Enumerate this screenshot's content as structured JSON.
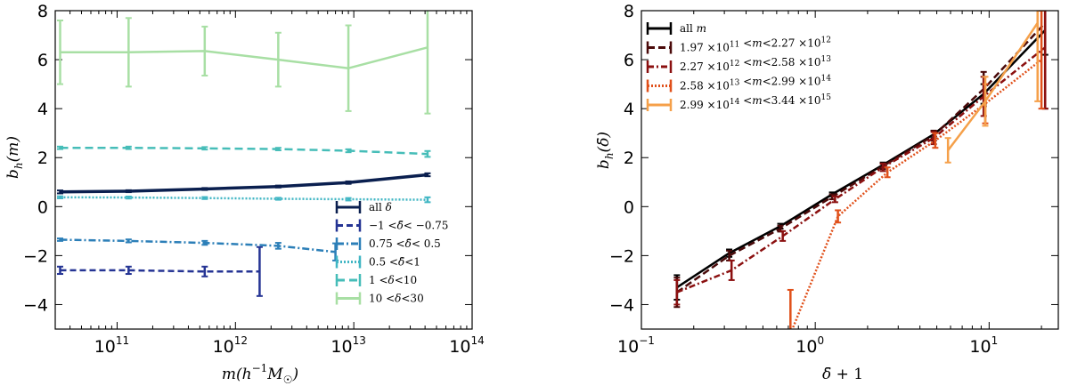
{
  "chart_data": [
    {
      "type": "line",
      "xscale": "log",
      "xlim": [
        30000000000.0,
        100000000000000.0
      ],
      "ylim": [
        -5,
        8
      ],
      "xlabel": "m(h⁻¹M☉)",
      "ylabel": "b_h(m)",
      "xticks": [
        {
          "v": 100000000000.0,
          "base": "10",
          "exp": "11"
        },
        {
          "v": 1000000000000.0,
          "base": "10",
          "exp": "12"
        },
        {
          "v": 10000000000000.0,
          "base": "10",
          "exp": "13"
        },
        {
          "v": 100000000000000.0,
          "base": "10",
          "exp": "14"
        }
      ],
      "yticks": [
        -4,
        -2,
        0,
        2,
        4,
        6,
        8
      ],
      "legend_position": "lower-right",
      "series": [
        {
          "name": "all δ",
          "color": "#0a1f4f",
          "dash": "",
          "width": 3.5,
          "x": [
            33000000000.0,
            125000000000.0,
            550000000000.0,
            2300000000000.0,
            9000000000000.0,
            42000000000000.0
          ],
          "y": [
            0.6,
            0.63,
            0.72,
            0.82,
            0.98,
            1.3
          ],
          "err": [
            0.06,
            0.04,
            0.04,
            0.04,
            0.05,
            0.06
          ]
        },
        {
          "name": "−1 < δ̄ < −0.75",
          "color": "#253494",
          "dash": "7,4",
          "width": 2.5,
          "x": [
            33000000000.0,
            125000000000.0,
            550000000000.0,
            1600000000000.0
          ],
          "y": [
            -2.6,
            -2.6,
            -2.65,
            -2.65
          ],
          "err": [
            0.15,
            0.15,
            0.2,
            1.0
          ]
        },
        {
          "name": "0.75 < δ̄ < 0.5",
          "color": "#2c7fb8",
          "dash": "8,3,2,3",
          "width": 2.5,
          "x": [
            33000000000.0,
            125000000000.0,
            550000000000.0,
            2300000000000.0,
            7000000000000.0
          ],
          "y": [
            -1.35,
            -1.4,
            -1.48,
            -1.6,
            -1.85
          ],
          "err": [
            0.05,
            0.06,
            0.08,
            0.12,
            0.35
          ]
        },
        {
          "name": "0.5 < δ̄ < 1",
          "color": "#41b6c4",
          "dash": "2,2",
          "width": 2.5,
          "x": [
            33000000000.0,
            125000000000.0,
            550000000000.0,
            2300000000000.0,
            9000000000000.0,
            42000000000000.0
          ],
          "y": [
            0.38,
            0.37,
            0.35,
            0.32,
            0.3,
            0.28
          ],
          "err": [
            0.04,
            0.04,
            0.04,
            0.04,
            0.05,
            0.1
          ]
        },
        {
          "name": "1 < δ < 10",
          "color": "#46bdb8",
          "dash": "9,5",
          "width": 2.5,
          "x": [
            33000000000.0,
            125000000000.0,
            550000000000.0,
            2300000000000.0,
            9000000000000.0,
            42000000000000.0
          ],
          "y": [
            2.4,
            2.4,
            2.38,
            2.35,
            2.28,
            2.15
          ],
          "err": [
            0.05,
            0.05,
            0.05,
            0.05,
            0.06,
            0.12
          ]
        },
        {
          "name": "10 < δ < 30",
          "color": "#a8dfa4",
          "dash": "",
          "width": 2.5,
          "x": [
            33000000000.0,
            125000000000.0,
            550000000000.0,
            2300000000000.0,
            9000000000000.0,
            42000000000000.0
          ],
          "y": [
            6.3,
            6.3,
            6.35,
            6.0,
            5.65,
            6.5
          ],
          "err": [
            1.3,
            1.4,
            1.0,
            1.1,
            1.75,
            2.7
          ]
        }
      ]
    },
    {
      "type": "line",
      "xscale": "log",
      "xlim": [
        0.1,
        25
      ],
      "ylim": [
        -5,
        8
      ],
      "xlabel": "δ̄ + 1",
      "ylabel": "b_h(δ̄)",
      "xticks": [
        {
          "v": 0.1,
          "base": "10",
          "exp": "−1"
        },
        {
          "v": 1,
          "base": "10",
          "exp": "0"
        },
        {
          "v": 10,
          "base": "10",
          "exp": "1"
        }
      ],
      "yticks": [
        -4,
        -2,
        0,
        2,
        4,
        6,
        8
      ],
      "legend_position": "top-left",
      "series": [
        {
          "name": "all m",
          "color": "#000000",
          "dash": "",
          "width": 2.5,
          "x": [
            0.16,
            0.32,
            0.63,
            1.25,
            2.45,
            4.8,
            9.3,
            21
          ],
          "y": [
            -3.3,
            -1.9,
            -0.8,
            0.5,
            1.7,
            2.95,
            4.6,
            7.2
          ],
          "err": [
            0.5,
            0.15,
            0.1,
            0.08,
            0.1,
            0.15,
            0.4,
            1.0
          ]
        },
        {
          "name": "1.97 ×10¹¹ < m < 2.27 ×10¹²",
          "color": "#4a0a0a",
          "dash": "8,4",
          "width": 2.5,
          "x": [
            0.16,
            0.32,
            0.63,
            1.25,
            2.45,
            4.8,
            9.3,
            21
          ],
          "y": [
            -3.5,
            -2.0,
            -0.9,
            0.4,
            1.65,
            2.9,
            4.8,
            7.5
          ],
          "err": [
            0.6,
            0.2,
            0.12,
            0.1,
            0.12,
            0.2,
            0.7,
            3.5
          ]
        },
        {
          "name": "2.27 ×10¹² < m < 2.58 ×10¹³",
          "color": "#8b1010",
          "dash": "7,3,2,3",
          "width": 2.5,
          "x": [
            0.16,
            0.33,
            0.65,
            1.3,
            2.45,
            4.8,
            9.3,
            21
          ],
          "y": [
            -3.5,
            -2.6,
            -1.2,
            0.3,
            1.6,
            2.8,
            4.5,
            6.5
          ],
          "err": [
            0.5,
            0.4,
            0.2,
            0.12,
            0.15,
            0.25,
            0.8,
            2.5
          ]
        },
        {
          "name": "2.58 ×10¹³ < m < 2.99 ×10¹⁴",
          "color": "#e0501a",
          "dash": "2,2",
          "width": 2.5,
          "x": [
            0.72,
            1.35,
            2.6,
            4.9,
            9.5,
            20
          ],
          "y": [
            -5.2,
            -0.4,
            1.4,
            2.7,
            4.2,
            6.0
          ],
          "err": [
            1.8,
            0.25,
            0.2,
            0.3,
            0.8,
            2.0
          ]
        },
        {
          "name": "2.99 ×10¹⁴ < m < 3.44 ×10¹⁵",
          "color": "#f5a04a",
          "dash": "",
          "width": 2.5,
          "x": [
            5.8,
            9.5,
            19
          ],
          "y": [
            2.3,
            4.3,
            7.5
          ],
          "err": [
            0.5,
            1.0,
            3.2
          ]
        }
      ]
    }
  ],
  "legends": {
    "left": [
      {
        "tex": "all δ",
        "parts": [
          {
            "t": "all "
          },
          {
            "t": "δ",
            "i": true
          }
        ]
      },
      {
        "parts": [
          {
            "t": "−1 <"
          },
          {
            "t": "δ̄",
            "i": true
          },
          {
            "t": "< −0.75"
          }
        ]
      },
      {
        "parts": [
          {
            "t": "   0.75 <"
          },
          {
            "t": "δ̄",
            "i": true
          },
          {
            "t": "<   0.5"
          }
        ]
      },
      {
        "parts": [
          {
            "t": "    0.5 <"
          },
          {
            "t": "δ̄",
            "i": true
          },
          {
            "t": "<1"
          }
        ]
      },
      {
        "parts": [
          {
            "t": "1 <"
          },
          {
            "t": "δ",
            "i": true
          },
          {
            "t": "<10"
          }
        ]
      },
      {
        "parts": [
          {
            "t": "10 <"
          },
          {
            "t": "δ",
            "i": true
          },
          {
            "t": "<30"
          }
        ]
      }
    ],
    "right": [
      {
        "parts": [
          {
            "t": "all "
          },
          {
            "t": "m",
            "i": true
          }
        ]
      },
      {
        "parts": [
          {
            "t": "1.97 ×10"
          },
          {
            "t": "11",
            "s": true
          },
          {
            "t": " <"
          },
          {
            "t": "m",
            "i": true
          },
          {
            "t": "<2.27 ×10"
          },
          {
            "t": "12",
            "s": true
          }
        ]
      },
      {
        "parts": [
          {
            "t": "2.27 ×10"
          },
          {
            "t": "12",
            "s": true
          },
          {
            "t": " <"
          },
          {
            "t": "m",
            "i": true
          },
          {
            "t": "<2.58 ×10"
          },
          {
            "t": "13",
            "s": true
          }
        ]
      },
      {
        "parts": [
          {
            "t": "2.58 ×10"
          },
          {
            "t": "13",
            "s": true
          },
          {
            "t": " <"
          },
          {
            "t": "m",
            "i": true
          },
          {
            "t": "<2.99 ×10"
          },
          {
            "t": "14",
            "s": true
          }
        ]
      },
      {
        "parts": [
          {
            "t": "2.99 ×10"
          },
          {
            "t": "14",
            "s": true
          },
          {
            "t": " <"
          },
          {
            "t": "m",
            "i": true
          },
          {
            "t": "<3.44 ×10"
          },
          {
            "t": "15",
            "s": true
          }
        ]
      }
    ]
  }
}
